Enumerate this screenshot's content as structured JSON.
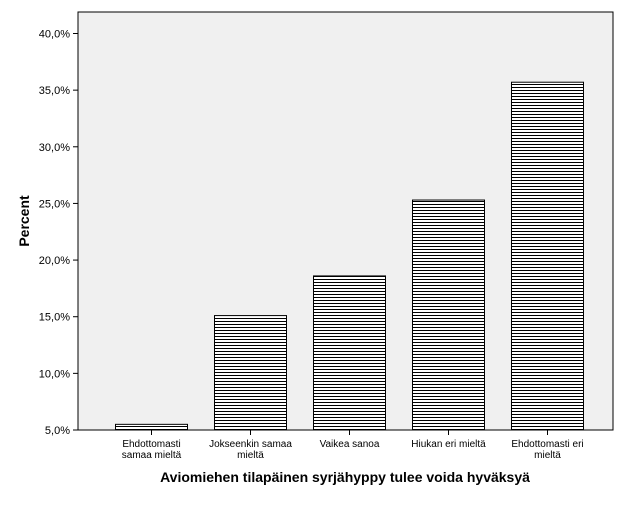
{
  "chart_data": {
    "type": "bar",
    "xlabel": "Aviomiehen tilapäinen syrjähyppy tulee voida hyväksyä",
    "ylabel": "Percent",
    "ylim": [
      5,
      40
    ],
    "y_ticks": [
      "5,0%",
      "10,0%",
      "15,0%",
      "20,0%",
      "25,0%",
      "30,0%",
      "35,0%",
      "40,0%"
    ],
    "grid": false,
    "legend": "none",
    "categories": [
      [
        "Ehdottomasti",
        "samaa mieltä"
      ],
      [
        "Jokseenkin samaa",
        "mieltä"
      ],
      [
        "Vaikea sanoa"
      ],
      [
        "Hiukan eri mieltä"
      ],
      [
        "Ehdottomasti eri",
        "mieltä"
      ]
    ],
    "values": [
      5.5,
      15.1,
      18.6,
      25.3,
      35.7
    ],
    "colors": {
      "plot_background": "#f0f0f0",
      "bar_fill": "#ffffff",
      "bar_hatch": "#000000",
      "axis": "#000000"
    }
  }
}
